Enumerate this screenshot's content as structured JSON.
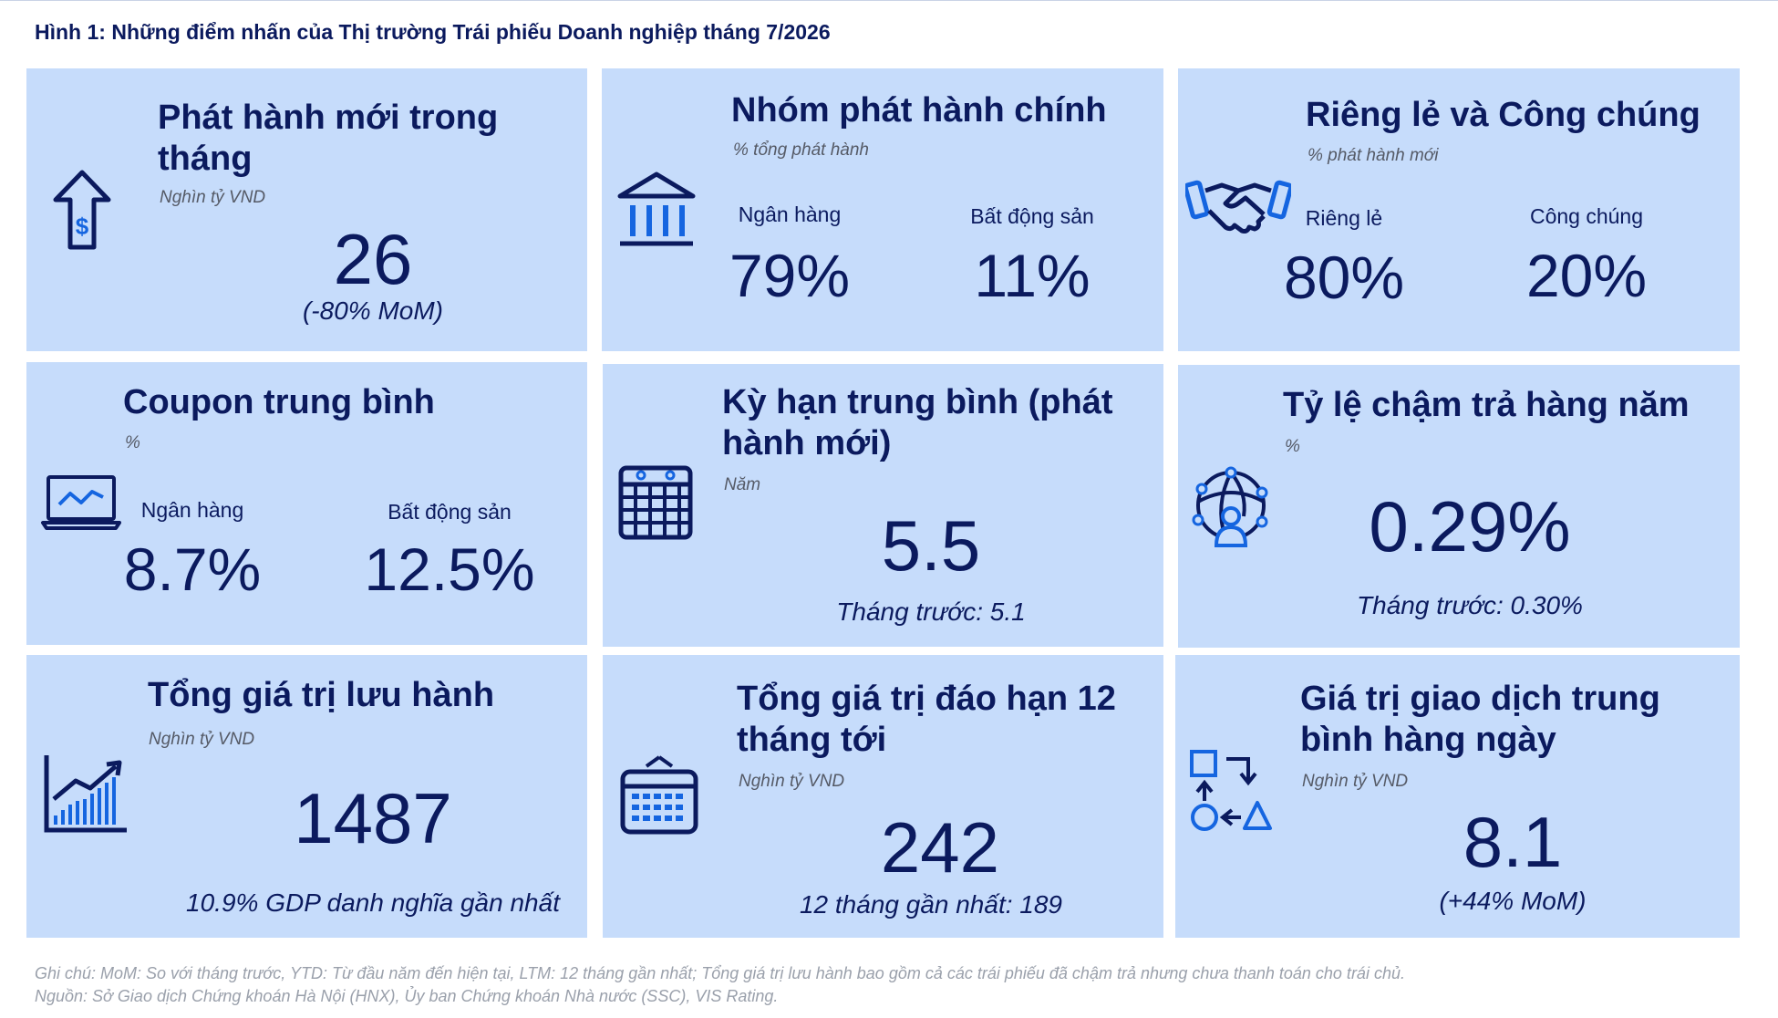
{
  "figure_title": "Hình 1: Những điểm nhấn của Thị trường Trái phiếu Doanh nghiệp tháng 7/2026",
  "cards": {
    "issuance": {
      "title": "Phát hành mới trong tháng",
      "unit": "Nghìn tỷ VND",
      "value": "26",
      "sub": "(-80% MoM)",
      "icon": "arrow-up-dollar-icon"
    },
    "issuer_groups": {
      "title": "Nhóm phát hành chính",
      "unit": "% tổng phát hành",
      "left_label": "Ngân hàng",
      "left_value": "79%",
      "right_label": "Bất động sản",
      "right_value": "11%",
      "icon": "bank-building-icon"
    },
    "private_public": {
      "title": "Riêng lẻ và Công chúng",
      "unit": "% phát hành mới",
      "left_label": "Riêng lẻ",
      "left_value": "80%",
      "right_label": "Công chúng",
      "right_value": "20%",
      "icon": "handshake-icon"
    },
    "coupon": {
      "title": "Coupon trung bình",
      "unit": "%",
      "left_label": "Ngân hàng",
      "left_value": "8.7%",
      "right_label": "Bất động sản",
      "right_value": "12.5%",
      "icon": "laptop-chart-icon"
    },
    "tenor": {
      "title": "Kỳ hạn trung bình (phát hành mới)",
      "unit": "Năm",
      "value": "5.5",
      "sub": "Tháng trước: 5.1",
      "icon": "calendar-icon"
    },
    "default_rate": {
      "title": "Tỷ lệ chậm trả hàng năm",
      "unit": "%",
      "value": "0.29%",
      "sub": "Tháng trước: 0.30%",
      "icon": "globe-network-person-icon"
    },
    "outstanding": {
      "title": "Tổng giá trị lưu hành",
      "unit": "Nghìn tỷ VND",
      "value": "1487",
      "sub": "10.9% GDP danh nghĩa gần nhất",
      "icon": "bar-chart-trend-icon"
    },
    "maturity": {
      "title": "Tổng giá trị đáo hạn 12 tháng tới",
      "unit": "Nghìn tỷ VND",
      "value": "242",
      "sub": "12 tháng gần nhất: 189",
      "icon": "calendar-grid-icon"
    },
    "trading": {
      "title": "Giá trị giao dịch trung bình hàng ngày",
      "unit": "Nghìn tỷ VND",
      "value": "8.1",
      "sub": "(+44% MoM)",
      "icon": "shapes-flow-icon"
    }
  },
  "notes": {
    "note": "Ghi chú:  MoM: So với tháng trước, YTD: Từ đầu năm đến hiện tại, LTM: 12 tháng gần nhất; Tổng giá trị lưu hành bao gồm cả các trái phiếu đã chậm trả nhưng chưa thanh toán cho trái chủ.",
    "source": "Nguồn: Sở Giao dịch Chứng khoán Hà Nội (HNX), Ủy ban Chứng khoán Nhà nước (SSC), VIS Rating."
  },
  "colors": {
    "card_bg": "#c6dcfb",
    "text": "#0b1a5e",
    "icon_dark": "#0b1a5e",
    "icon_blue": "#1565e0"
  }
}
